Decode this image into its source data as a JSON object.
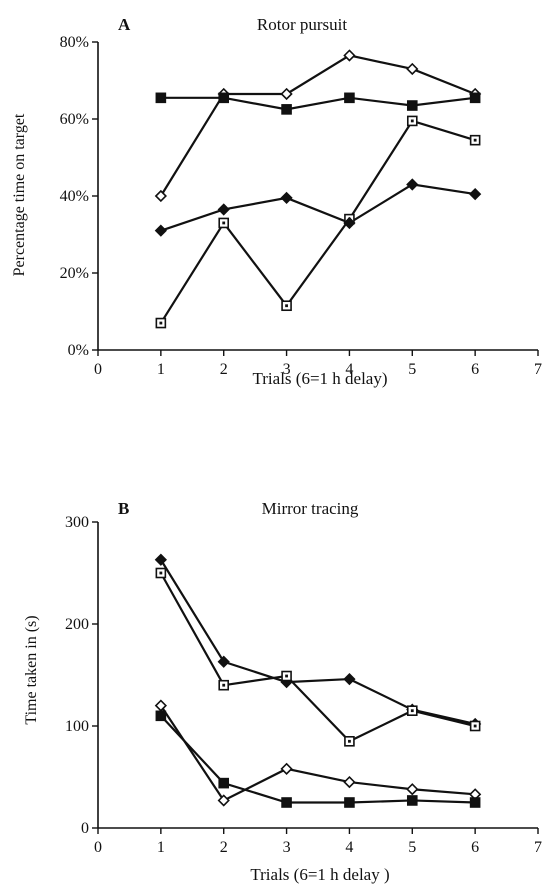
{
  "chart_data": [
    {
      "type": "line",
      "panel_label": "A",
      "title": "Rotor pursuit",
      "xlabel": "Trials (6=1 h delay)",
      "ylabel": "Percentage time on target",
      "xlim": [
        0,
        7
      ],
      "ylim": [
        0,
        80
      ],
      "x_ticks": [
        "0",
        "1",
        "2",
        "3",
        "4",
        "5",
        "6",
        "7"
      ],
      "y_ticks": [
        "0%",
        "20%",
        "40%",
        "60%",
        "80%"
      ],
      "grid": false,
      "x": [
        1,
        2,
        3,
        4,
        5,
        6
      ],
      "series": [
        {
          "marker": "open-diamond",
          "values": [
            40,
            66.5,
            66.5,
            76.5,
            73,
            66.5
          ]
        },
        {
          "marker": "filled-square",
          "values": [
            65.5,
            65.5,
            62.5,
            65.5,
            63.5,
            65.5
          ]
        },
        {
          "marker": "open-square",
          "values": [
            7,
            33,
            11.5,
            34,
            59.5,
            54.5
          ]
        },
        {
          "marker": "filled-diamond",
          "values": [
            31,
            36.5,
            39.5,
            33,
            43,
            40.5
          ]
        }
      ]
    },
    {
      "type": "line",
      "panel_label": "B",
      "title": "Mirror tracing",
      "xlabel": "Trials (6=1 h delay )",
      "ylabel": "Time taken in (s)",
      "xlim": [
        0,
        7
      ],
      "ylim": [
        0,
        300
      ],
      "x_ticks": [
        "0",
        "1",
        "2",
        "3",
        "4",
        "5",
        "6",
        "7"
      ],
      "y_ticks": [
        "0",
        "100",
        "200",
        "300"
      ],
      "grid": false,
      "x": [
        1,
        2,
        3,
        4,
        5,
        6
      ],
      "series": [
        {
          "marker": "filled-diamond",
          "values": [
            263,
            163,
            143,
            146,
            116,
            102
          ]
        },
        {
          "marker": "open-square",
          "values": [
            250,
            140,
            149,
            85,
            115,
            100
          ]
        },
        {
          "marker": "open-diamond",
          "values": [
            120,
            27,
            58,
            45,
            38,
            33
          ]
        },
        {
          "marker": "filled-square",
          "values": [
            110,
            44,
            25,
            25,
            27,
            25
          ]
        }
      ]
    }
  ]
}
